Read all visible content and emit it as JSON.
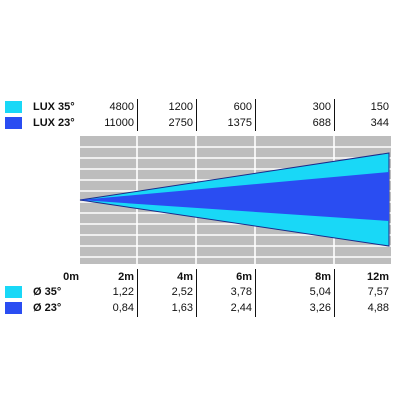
{
  "colors": {
    "beam_35": "#19d8f7",
    "beam_23": "#2a4df2",
    "beam_outline": "#1a2a8a",
    "grid_background": "#bdbdbd",
    "grid_lines": "#ffffff"
  },
  "lux_table": {
    "rows": [
      {
        "label": "LUX 35°",
        "color_key": "beam_35",
        "values": [
          "4800",
          "1200",
          "600",
          "300",
          "150"
        ]
      },
      {
        "label": "LUX 23°",
        "color_key": "beam_23",
        "values": [
          "11000",
          "2750",
          "1375",
          "688",
          "344"
        ]
      }
    ]
  },
  "distance_row": {
    "start": "0m",
    "values": [
      "2m",
      "4m",
      "6m",
      "8m",
      "12m"
    ]
  },
  "diameter_table": {
    "rows": [
      {
        "label": "Ø 35°",
        "color_key": "beam_35",
        "values": [
          "1,22",
          "2,52",
          "3,78",
          "5,04",
          "7,57"
        ]
      },
      {
        "label": "Ø 23°",
        "color_key": "beam_23",
        "values": [
          "0,84",
          "1,63",
          "2,44",
          "3,26",
          "4,88"
        ]
      }
    ]
  },
  "beam_angles_deg": [
    35,
    23
  ]
}
